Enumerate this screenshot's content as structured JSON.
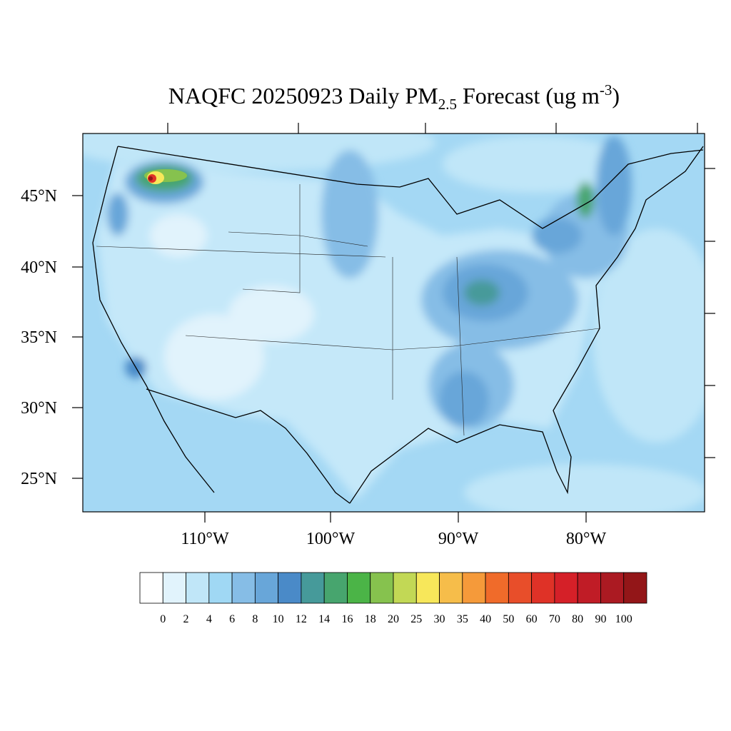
{
  "title": {
    "main": "NAQFC 20250923 Daily PM",
    "sub": "2.5",
    "mid": " Forecast (ug m",
    "sup": "-3",
    "end": ")"
  },
  "lat_labels": [
    "45°N",
    "40°N",
    "35°N",
    "30°N",
    "25°N"
  ],
  "lon_labels": [
    "110°W",
    "100°W",
    "90°W",
    "80°W"
  ],
  "colorbar": {
    "labels": [
      "0",
      "2",
      "4",
      "6",
      "8",
      "10",
      "12",
      "14",
      "16",
      "18",
      "20",
      "25",
      "30",
      "35",
      "40",
      "50",
      "60",
      "70",
      "80",
      "90",
      "100"
    ],
    "colors": [
      "#ffffff",
      "#e1f3fc",
      "#c0e6f8",
      "#a0d8f4",
      "#86bde6",
      "#68a6d9",
      "#4a8ac8",
      "#469a9a",
      "#47a56e",
      "#4bb447",
      "#86c24e",
      "#c2d855",
      "#f7e75a",
      "#f6bd4a",
      "#f59a3a",
      "#f06b2a",
      "#e84e2a",
      "#df3227",
      "#d52028",
      "#c01c26",
      "#ab1a22",
      "#931618"
    ]
  }
}
